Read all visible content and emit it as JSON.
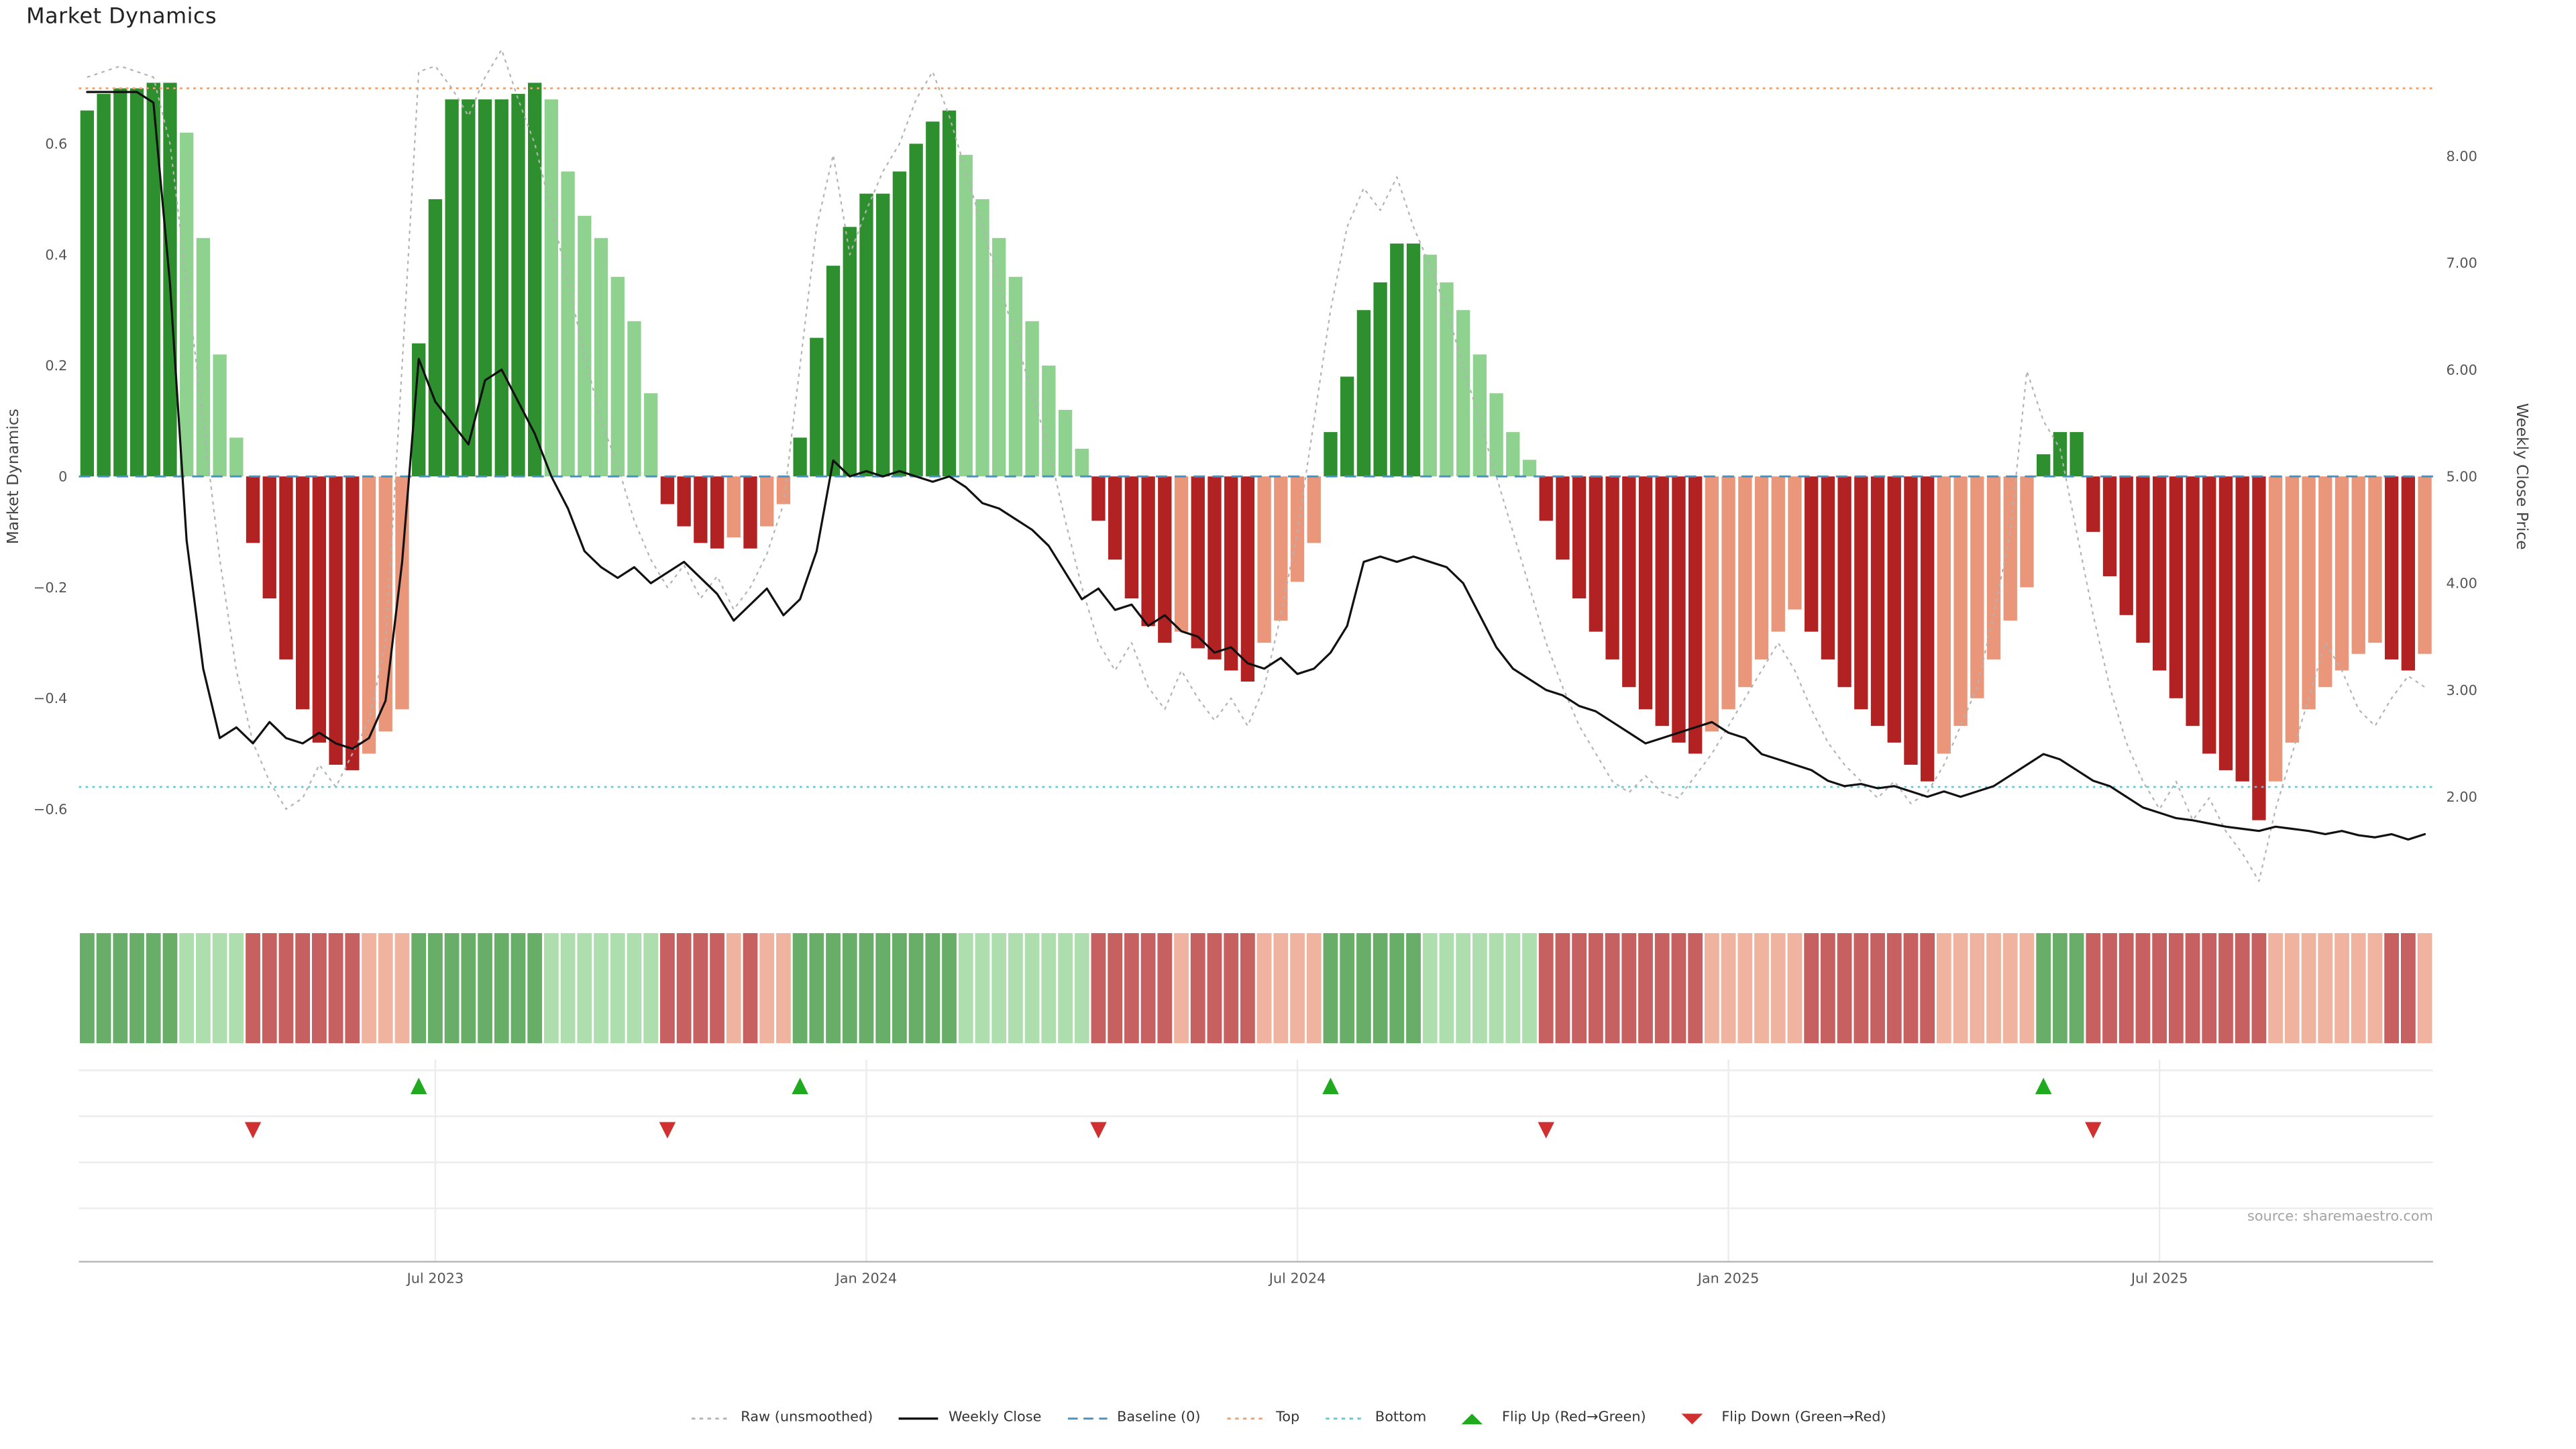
{
  "title": "Market Dynamics",
  "source": "source: sharemaestro.com",
  "axes": {
    "left_label": "Market Dynamics",
    "right_label": "Weekly Close Price",
    "left_ticks": [
      {
        "v": 0.6,
        "label": "0.6"
      },
      {
        "v": 0.4,
        "label": "0.4"
      },
      {
        "v": 0.2,
        "label": "0.2"
      },
      {
        "v": 0.0,
        "label": "0"
      },
      {
        "v": -0.2,
        "label": "−0.2"
      },
      {
        "v": -0.4,
        "label": "−0.4"
      },
      {
        "v": -0.6,
        "label": "−0.6"
      }
    ],
    "right_ticks": [
      {
        "v": 8,
        "label": "8.00"
      },
      {
        "v": 7,
        "label": "7.00"
      },
      {
        "v": 6,
        "label": "6.00"
      },
      {
        "v": 5,
        "label": "5.00"
      },
      {
        "v": 4,
        "label": "4.00"
      },
      {
        "v": 3,
        "label": "3.00"
      },
      {
        "v": 2,
        "label": "2.00"
      }
    ],
    "x_ticks": [
      {
        "index": 21,
        "label": "Jul 2023"
      },
      {
        "index": 47,
        "label": "Jan 2024"
      },
      {
        "index": 73,
        "label": "Jul 2024"
      },
      {
        "index": 99,
        "label": "Jan 2025"
      },
      {
        "index": 125,
        "label": "Jul 2025"
      }
    ]
  },
  "colors": {
    "bar_green_dark": "#2e8f2e",
    "bar_green_light": "#8fd18f",
    "bar_red_dark": "#b22222",
    "bar_red_light": "#e9967a",
    "raw_line": "#b3b3b3",
    "close_line": "#111111",
    "baseline_line": "#4292c6",
    "top_line": "#f0a070",
    "bottom_line": "#5fc9d9",
    "flip_up": "#1faa1f",
    "flip_down": "#d03030",
    "grid": "#ececec",
    "axis_line": "#b5b5b5",
    "tick_text": "#555555",
    "axis_title_text": "#444444"
  },
  "chart_data": {
    "type": "bar",
    "subtype": "oscillator bars + overlaid lines + color heatmap strip + flip markers",
    "x_unit": "week",
    "title": "Market Dynamics",
    "xlabel": "",
    "ylabel_left": "Market Dynamics",
    "ylabel_right": "Weekly Close Price",
    "left_ylim": [
      -0.78,
      0.78
    ],
    "right_ylim": [
      1.5,
      9.0
    ],
    "grid": false,
    "legend_position": "bottom",
    "baseline": 0,
    "top_level": 0.7,
    "bottom_level": -0.56,
    "dynamics": [
      0.66,
      0.69,
      0.7,
      0.7,
      0.71,
      0.71,
      0.62,
      0.43,
      0.22,
      0.07,
      -0.12,
      -0.22,
      -0.33,
      -0.42,
      -0.48,
      -0.52,
      -0.53,
      -0.5,
      -0.46,
      -0.42,
      0.24,
      0.5,
      0.68,
      0.68,
      0.68,
      0.68,
      0.69,
      0.71,
      0.68,
      0.55,
      0.47,
      0.43,
      0.36,
      0.28,
      0.15,
      -0.05,
      -0.09,
      -0.12,
      -0.13,
      -0.11,
      -0.13,
      -0.09,
      -0.05,
      0.07,
      0.25,
      0.38,
      0.45,
      0.51,
      0.51,
      0.55,
      0.6,
      0.64,
      0.66,
      0.58,
      0.5,
      0.43,
      0.36,
      0.28,
      0.2,
      0.12,
      0.05,
      -0.08,
      -0.15,
      -0.22,
      -0.27,
      -0.3,
      -0.28,
      -0.31,
      -0.33,
      -0.35,
      -0.37,
      -0.3,
      -0.26,
      -0.19,
      -0.12,
      0.08,
      0.18,
      0.3,
      0.35,
      0.42,
      0.42,
      0.4,
      0.35,
      0.3,
      0.22,
      0.15,
      0.08,
      0.03,
      -0.08,
      -0.15,
      -0.22,
      -0.28,
      -0.33,
      -0.38,
      -0.42,
      -0.45,
      -0.48,
      -0.5,
      -0.46,
      -0.42,
      -0.38,
      -0.33,
      -0.28,
      -0.24,
      -0.28,
      -0.33,
      -0.38,
      -0.42,
      -0.45,
      -0.48,
      -0.52,
      -0.55,
      -0.5,
      -0.45,
      -0.4,
      -0.33,
      -0.26,
      -0.2,
      0.04,
      0.08,
      0.08,
      -0.1,
      -0.18,
      -0.25,
      -0.3,
      -0.35,
      -0.4,
      -0.45,
      -0.5,
      -0.53,
      -0.55,
      -0.62,
      -0.55,
      -0.48,
      -0.42,
      -0.38,
      -0.35,
      -0.32,
      -0.3,
      -0.33,
      -0.35,
      -0.32
    ],
    "raw": [
      0.72,
      0.73,
      0.74,
      0.73,
      0.72,
      0.6,
      0.35,
      0.1,
      -0.15,
      -0.35,
      -0.48,
      -0.55,
      -0.6,
      -0.58,
      -0.52,
      -0.56,
      -0.5,
      -0.44,
      -0.3,
      0.2,
      0.73,
      0.74,
      0.7,
      0.65,
      0.72,
      0.77,
      0.68,
      0.6,
      0.48,
      0.35,
      0.22,
      0.1,
      0.02,
      -0.08,
      -0.15,
      -0.2,
      -0.16,
      -0.22,
      -0.18,
      -0.24,
      -0.2,
      -0.14,
      -0.05,
      0.2,
      0.45,
      0.58,
      0.4,
      0.48,
      0.55,
      0.6,
      0.68,
      0.73,
      0.65,
      0.55,
      0.45,
      0.35,
      0.25,
      0.15,
      0.05,
      -0.08,
      -0.2,
      -0.3,
      -0.35,
      -0.3,
      -0.38,
      -0.42,
      -0.35,
      -0.4,
      -0.44,
      -0.4,
      -0.45,
      -0.38,
      -0.25,
      -0.1,
      0.1,
      0.3,
      0.45,
      0.52,
      0.48,
      0.54,
      0.45,
      0.38,
      0.3,
      0.2,
      0.1,
      0.0,
      -0.1,
      -0.2,
      -0.3,
      -0.38,
      -0.45,
      -0.5,
      -0.55,
      -0.57,
      -0.54,
      -0.57,
      -0.58,
      -0.54,
      -0.5,
      -0.45,
      -0.4,
      -0.35,
      -0.3,
      -0.35,
      -0.42,
      -0.48,
      -0.52,
      -0.55,
      -0.58,
      -0.55,
      -0.59,
      -0.57,
      -0.52,
      -0.45,
      -0.38,
      -0.25,
      -0.1,
      0.19,
      0.1,
      0.05,
      -0.1,
      -0.25,
      -0.38,
      -0.48,
      -0.55,
      -0.6,
      -0.55,
      -0.62,
      -0.58,
      -0.64,
      -0.68,
      -0.73,
      -0.6,
      -0.5,
      -0.4,
      -0.3,
      -0.35,
      -0.42,
      -0.45,
      -0.4,
      -0.36,
      -0.38
    ],
    "weekly_close": [
      8.6,
      8.6,
      8.6,
      8.6,
      8.5,
      6.8,
      4.4,
      3.2,
      2.55,
      2.65,
      2.5,
      2.7,
      2.55,
      2.5,
      2.6,
      2.5,
      2.45,
      2.55,
      2.9,
      4.2,
      6.1,
      5.7,
      5.5,
      5.3,
      5.9,
      6.0,
      5.7,
      5.4,
      5.0,
      4.7,
      4.3,
      4.15,
      4.05,
      4.15,
      4.0,
      4.1,
      4.2,
      4.05,
      3.9,
      3.65,
      3.8,
      3.95,
      3.7,
      3.85,
      4.3,
      5.15,
      5.0,
      5.05,
      5.0,
      5.05,
      5.0,
      4.95,
      5.0,
      4.9,
      4.75,
      4.7,
      4.6,
      4.5,
      4.35,
      4.1,
      3.85,
      3.95,
      3.75,
      3.8,
      3.6,
      3.7,
      3.55,
      3.5,
      3.35,
      3.4,
      3.25,
      3.2,
      3.3,
      3.15,
      3.2,
      3.35,
      3.6,
      4.2,
      4.25,
      4.2,
      4.25,
      4.2,
      4.15,
      4.0,
      3.7,
      3.4,
      3.2,
      3.1,
      3.0,
      2.95,
      2.85,
      2.8,
      2.7,
      2.6,
      2.5,
      2.55,
      2.6,
      2.65,
      2.7,
      2.6,
      2.55,
      2.4,
      2.35,
      2.3,
      2.25,
      2.15,
      2.1,
      2.12,
      2.08,
      2.1,
      2.05,
      2.0,
      2.05,
      2.0,
      2.05,
      2.1,
      2.2,
      2.3,
      2.4,
      2.35,
      2.25,
      2.15,
      2.1,
      2.0,
      1.9,
      1.85,
      1.8,
      1.78,
      1.75,
      1.72,
      1.7,
      1.68,
      1.72,
      1.7,
      1.68,
      1.65,
      1.68,
      1.64,
      1.62,
      1.65,
      1.6,
      1.65
    ],
    "flip_up_indices": [
      20,
      43,
      75,
      118
    ],
    "flip_down_indices": [
      10,
      35,
      61,
      88,
      121
    ]
  },
  "legend": [
    {
      "label": "Raw (unsmoothed)",
      "swatch": "dotted",
      "color": "#b3b3b3"
    },
    {
      "label": "Weekly Close",
      "swatch": "solid",
      "color": "#111111"
    },
    {
      "label": "Baseline (0)",
      "swatch": "dashed",
      "color": "#4292c6"
    },
    {
      "label": "Top",
      "swatch": "dotted",
      "color": "#f0a070"
    },
    {
      "label": "Bottom",
      "swatch": "dotted",
      "color": "#5fc9d9"
    },
    {
      "label": "Flip Up (Red→Green)",
      "swatch": "triangle-up",
      "color": "#1faa1f"
    },
    {
      "label": "Flip Down (Green→Red)",
      "swatch": "triangle-down",
      "color": "#d03030"
    }
  ]
}
